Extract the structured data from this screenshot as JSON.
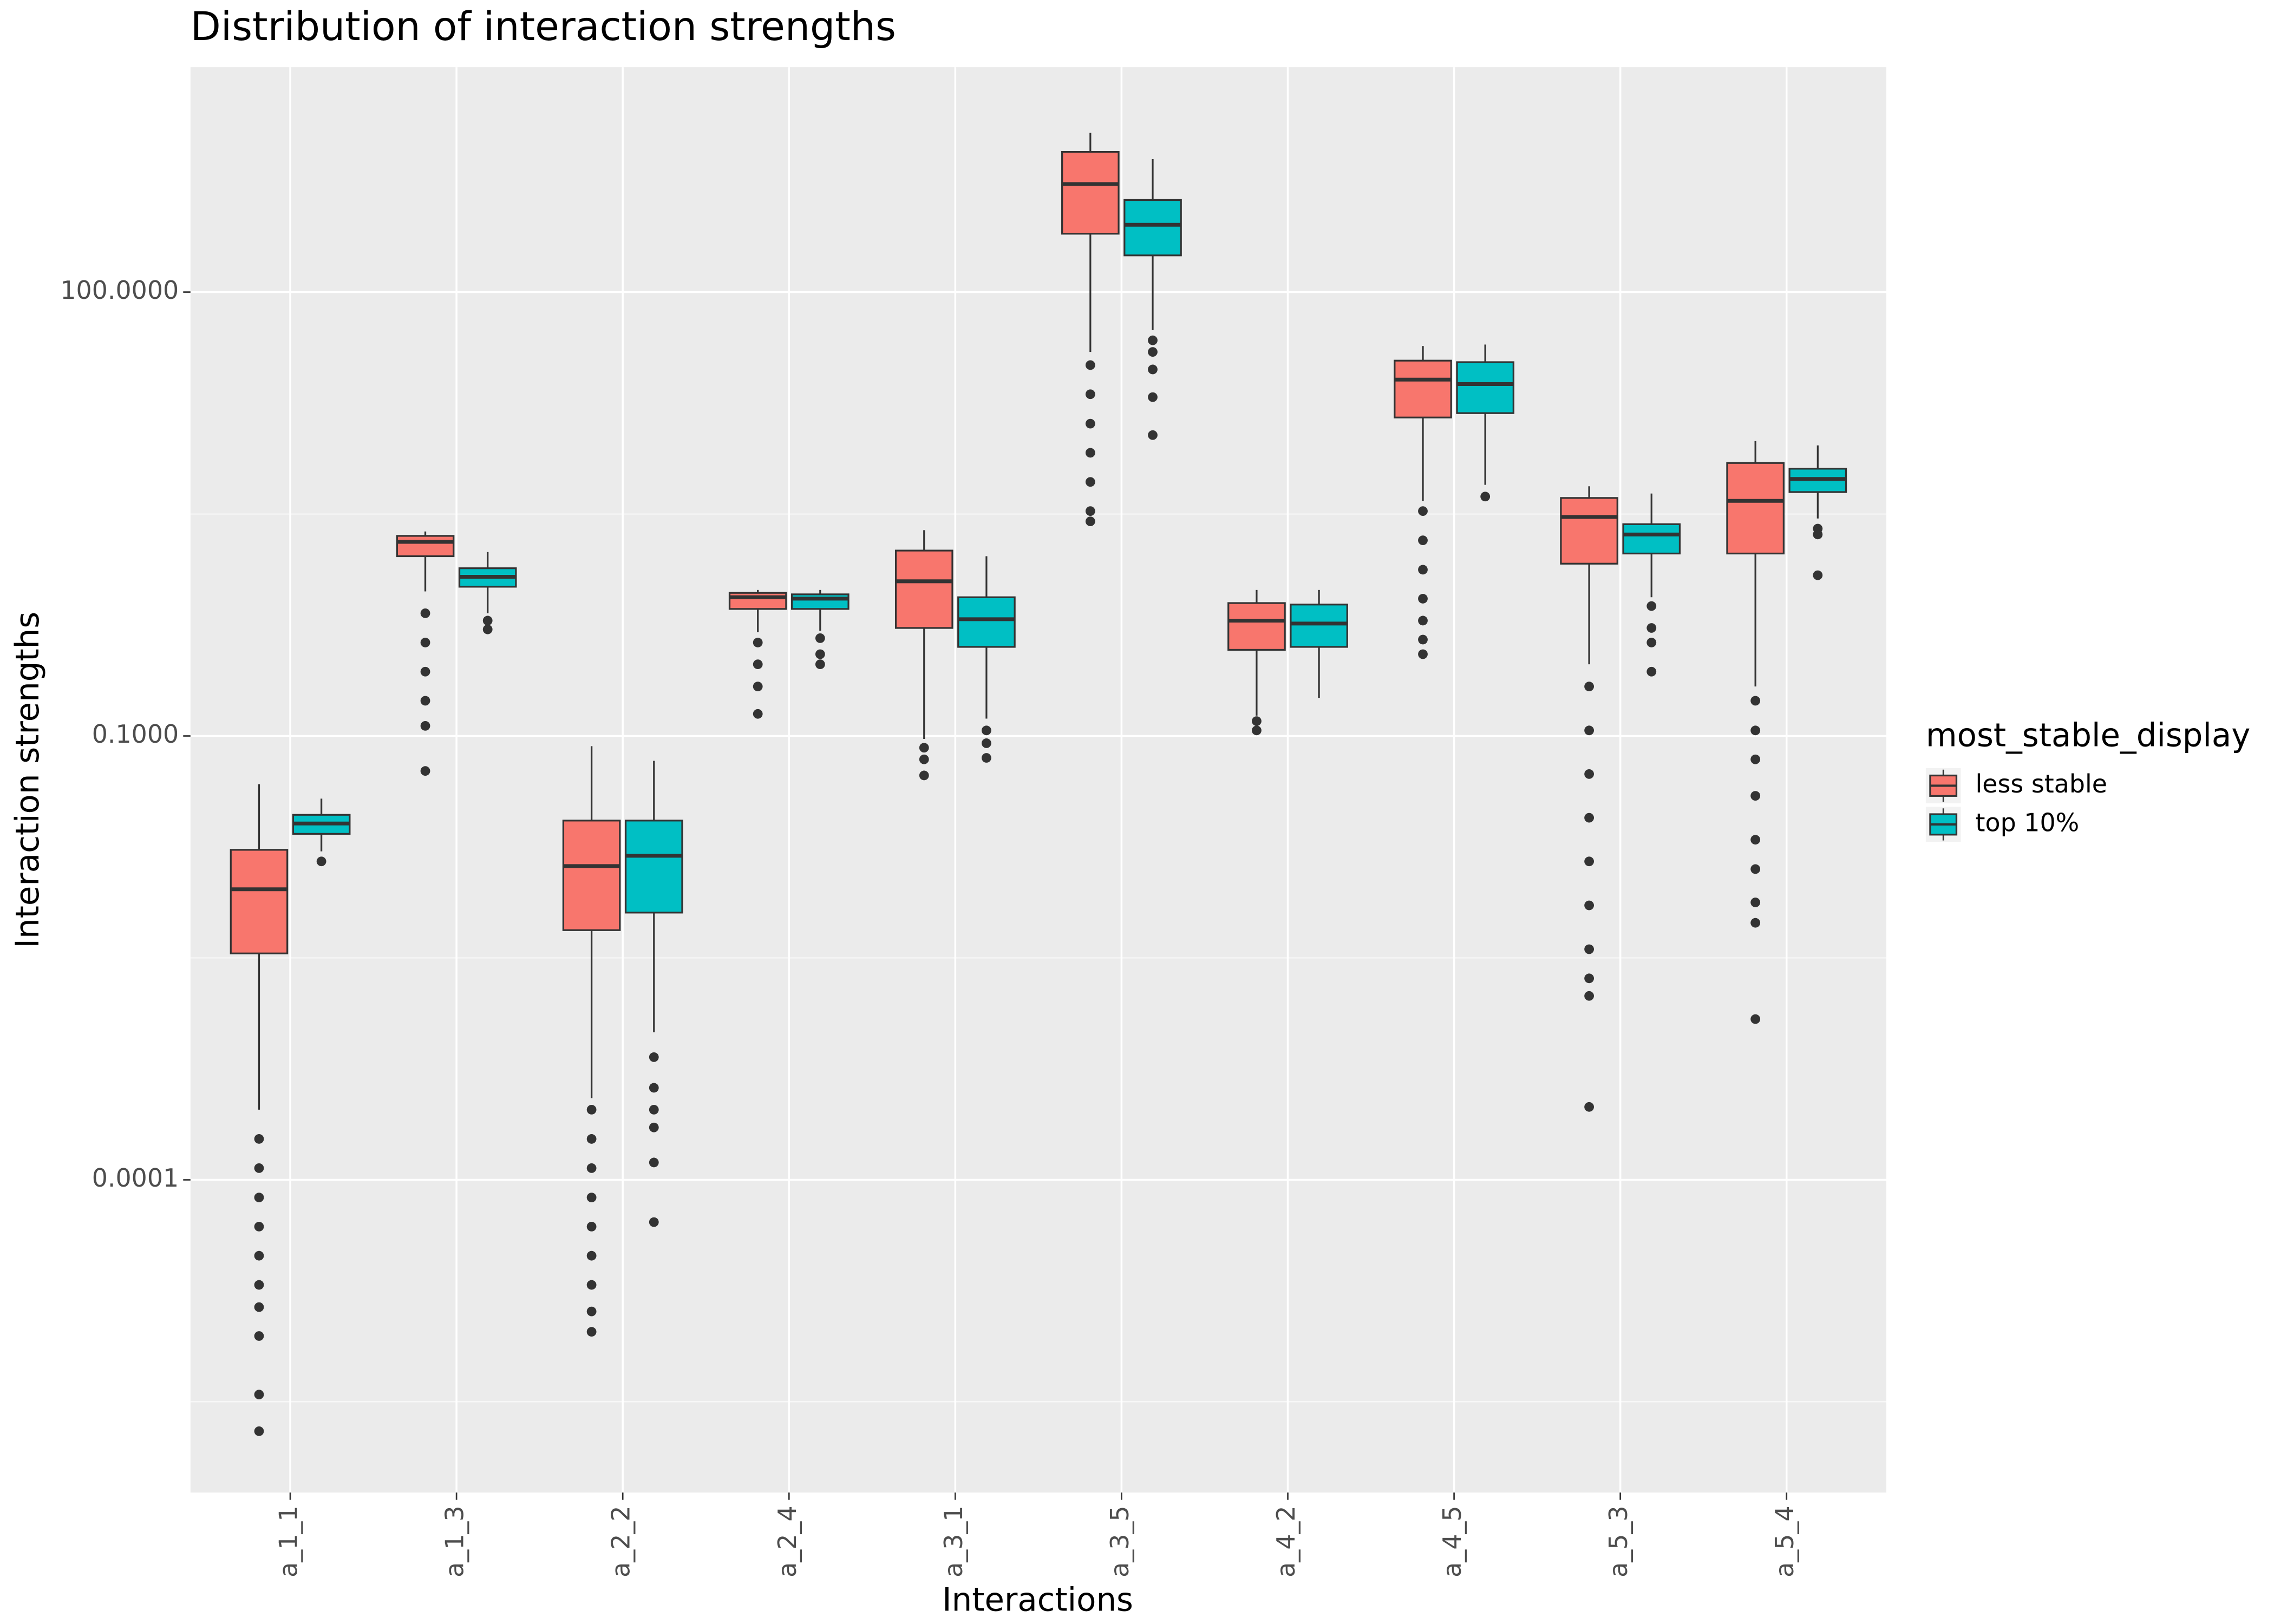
{
  "chart_data": {
    "type": "box",
    "title": "Distribution of interaction strengths",
    "x_label": "Interactions",
    "y_label": "Interaction strengths",
    "legend_title": "most_stable_display",
    "legend_position": "right",
    "log_scale": true,
    "grid": true,
    "categories": [
      "a_1_1",
      "a_1_3",
      "a_2_2",
      "a_2_4",
      "a_3_1",
      "a_3_5",
      "a_4_2",
      "a_4_5",
      "a_5_3",
      "a_5_4"
    ],
    "ylim": [
      7.7e-07,
      3311
    ],
    "yticks": [
      {
        "value": 0.0001,
        "label": "0.0001"
      },
      {
        "value": 0.1,
        "label": "0.1000"
      },
      {
        "value": 100,
        "label": "100.0000"
      }
    ],
    "series": [
      {
        "name": "less stable",
        "color": "#F8766D",
        "boxes": [
          {
            "whislo": 0.000298,
            "q1": 0.00339,
            "med": 0.0092,
            "q3": 0.017,
            "whishi": 0.0472,
            "fliers": [
              0.000189,
              0.00012,
              7.6e-05,
              4.83e-05,
              3.07e-05,
              1.95e-05,
              1.38e-05,
              8.8e-06,
              3.54e-06,
              2e-06
            ]
          },
          {
            "whislo": 0.948,
            "q1": 1.64,
            "med": 2.05,
            "q3": 2.25,
            "whishi": 2.41,
            "fliers": [
              0.675,
              0.428,
              0.272,
              0.173,
              0.117,
              0.058
            ]
          },
          {
            "whislo": 0.000357,
            "q1": 0.00487,
            "med": 0.0132,
            "q3": 0.0268,
            "whishi": 0.0853,
            "fliers": [
              0.000298,
              0.000189,
              0.00012,
              7.6e-05,
              4.83e-05,
              3.07e-05,
              1.95e-05,
              1.29e-05,
              9.4e-06
            ]
          },
          {
            "whislo": 0.502,
            "q1": 0.722,
            "med": 0.866,
            "q3": 0.927,
            "whishi": 0.97,
            "fliers": [
              0.428,
              0.305,
              0.216,
              0.141
            ]
          },
          {
            "whislo": 0.0955,
            "q1": 0.537,
            "med": 1.11,
            "q3": 1.79,
            "whishi": 2.46,
            "fliers": [
              0.0833,
              0.0695,
              0.0541
            ]
          },
          {
            "whislo": 39.4,
            "q1": 248,
            "med": 537,
            "q3": 886,
            "whishi": 1191,
            "fliers": [
              32.1,
              20.4,
              12.9,
              8.2,
              5.21,
              3.31,
              2.82
            ]
          },
          {
            "whislo": 0.137,
            "q1": 0.382,
            "med": 0.602,
            "q3": 0.791,
            "whishi": 0.97,
            "fliers": [
              0.126,
              0.109
            ]
          },
          {
            "whislo": 3.88,
            "q1": 14.2,
            "med": 25.6,
            "q3": 34.4,
            "whishi": 43.2,
            "fliers": [
              3.31,
              2.1,
              1.33,
              0.847,
              0.602,
              0.448,
              0.357
            ]
          },
          {
            "whislo": 0.305,
            "q1": 1.46,
            "med": 3.02,
            "q3": 4.06,
            "whishi": 4.87,
            "fliers": [
              0.216,
              0.109,
              0.0553,
              0.028,
              0.0142,
              0.00716,
              0.00362,
              0.0023,
              0.00175,
              0.000311
            ]
          },
          {
            "whislo": 0.216,
            "q1": 1.71,
            "med": 3.88,
            "q3": 7.0,
            "whishi": 9.84,
            "fliers": [
              0.173,
              0.109,
              0.0695,
              0.0394,
              0.0199,
              0.0126,
              0.0075,
              0.00546,
              0.00122
            ]
          }
        ]
      },
      {
        "name": "top 10%",
        "color": "#00BFC4",
        "boxes": [
          {
            "whislo": 0.0166,
            "q1": 0.0218,
            "med": 0.0256,
            "q3": 0.0293,
            "whishi": 0.0377,
            "fliers": [
              0.0142
            ]
          },
          {
            "whislo": 0.675,
            "q1": 1.02,
            "med": 1.19,
            "q3": 1.36,
            "whishi": 1.75,
            "fliers": [
              0.602,
              0.525
            ]
          },
          {
            "whislo": 0.000993,
            "q1": 0.0064,
            "med": 0.0155,
            "q3": 0.0268,
            "whishi": 0.0679,
            "fliers": [
              0.000675,
              0.000419,
              0.000298,
              0.000226,
              0.000131,
              5.18e-05
            ]
          },
          {
            "whislo": 0.514,
            "q1": 0.722,
            "med": 0.847,
            "q3": 0.906,
            "whishi": 0.97,
            "fliers": [
              0.458,
              0.357,
              0.305
            ]
          },
          {
            "whislo": 0.131,
            "q1": 0.4,
            "med": 0.615,
            "q3": 0.866,
            "whishi": 1.64,
            "fliers": [
              0.109,
              0.0893,
              0.0711
            ]
          },
          {
            "whislo": 55.3,
            "q1": 177,
            "med": 285,
            "q3": 419,
            "whishi": 791,
            "fliers": [
              47.2,
              39.4,
              30.0,
              19.5,
              10.8
            ]
          },
          {
            "whislo": 0.181,
            "q1": 0.4,
            "med": 0.575,
            "q3": 0.773,
            "whishi": 0.97,
            "fliers": []
          },
          {
            "whislo": 4.98,
            "q1": 15.2,
            "med": 23.9,
            "q3": 33.6,
            "whishi": 44.2,
            "fliers": [
              4.15
            ]
          },
          {
            "whislo": 0.866,
            "q1": 1.71,
            "med": 2.3,
            "q3": 2.7,
            "whishi": 4.35,
            "fliers": [
              0.755,
              0.537,
              0.428,
              0.272
            ]
          },
          {
            "whislo": 2.95,
            "q1": 4.45,
            "med": 5.46,
            "q3": 6.4,
            "whishi": 9.2,
            "fliers": [
              2.52,
              2.3,
              1.22
            ]
          }
        ]
      }
    ]
  }
}
